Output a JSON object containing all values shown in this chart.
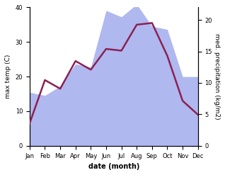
{
  "months": [
    "Jan",
    "Feb",
    "Mar",
    "Apr",
    "May",
    "Jun",
    "Jul",
    "Aug",
    "Sep",
    "Oct",
    "Nov",
    "Dec"
  ],
  "temp": [
    6.5,
    19.0,
    16.5,
    24.5,
    22.0,
    28.0,
    27.5,
    35.0,
    35.5,
    26.0,
    13.0,
    9.0
  ],
  "precip": [
    8.5,
    8.0,
    9.5,
    13.0,
    12.5,
    21.5,
    20.5,
    22.5,
    19.0,
    18.5,
    11.0,
    11.0
  ],
  "temp_color": "#8B2252",
  "precip_fill_color": "#b0b8f0",
  "title": "",
  "xlabel": "date (month)",
  "ylabel_left": "max temp (C)",
  "ylabel_right": "med. precipitation (kg/m2)",
  "ylim_left": [
    0,
    40
  ],
  "ylim_right": [
    0,
    22
  ],
  "yticks_left": [
    0,
    10,
    20,
    30,
    40
  ],
  "yticks_right": [
    0,
    5,
    10,
    15,
    20
  ],
  "background_color": "#ffffff",
  "linewidth": 1.8,
  "xlabel_fontsize": 7,
  "ylabel_fontsize": 6.5,
  "tick_fontsize": 6
}
